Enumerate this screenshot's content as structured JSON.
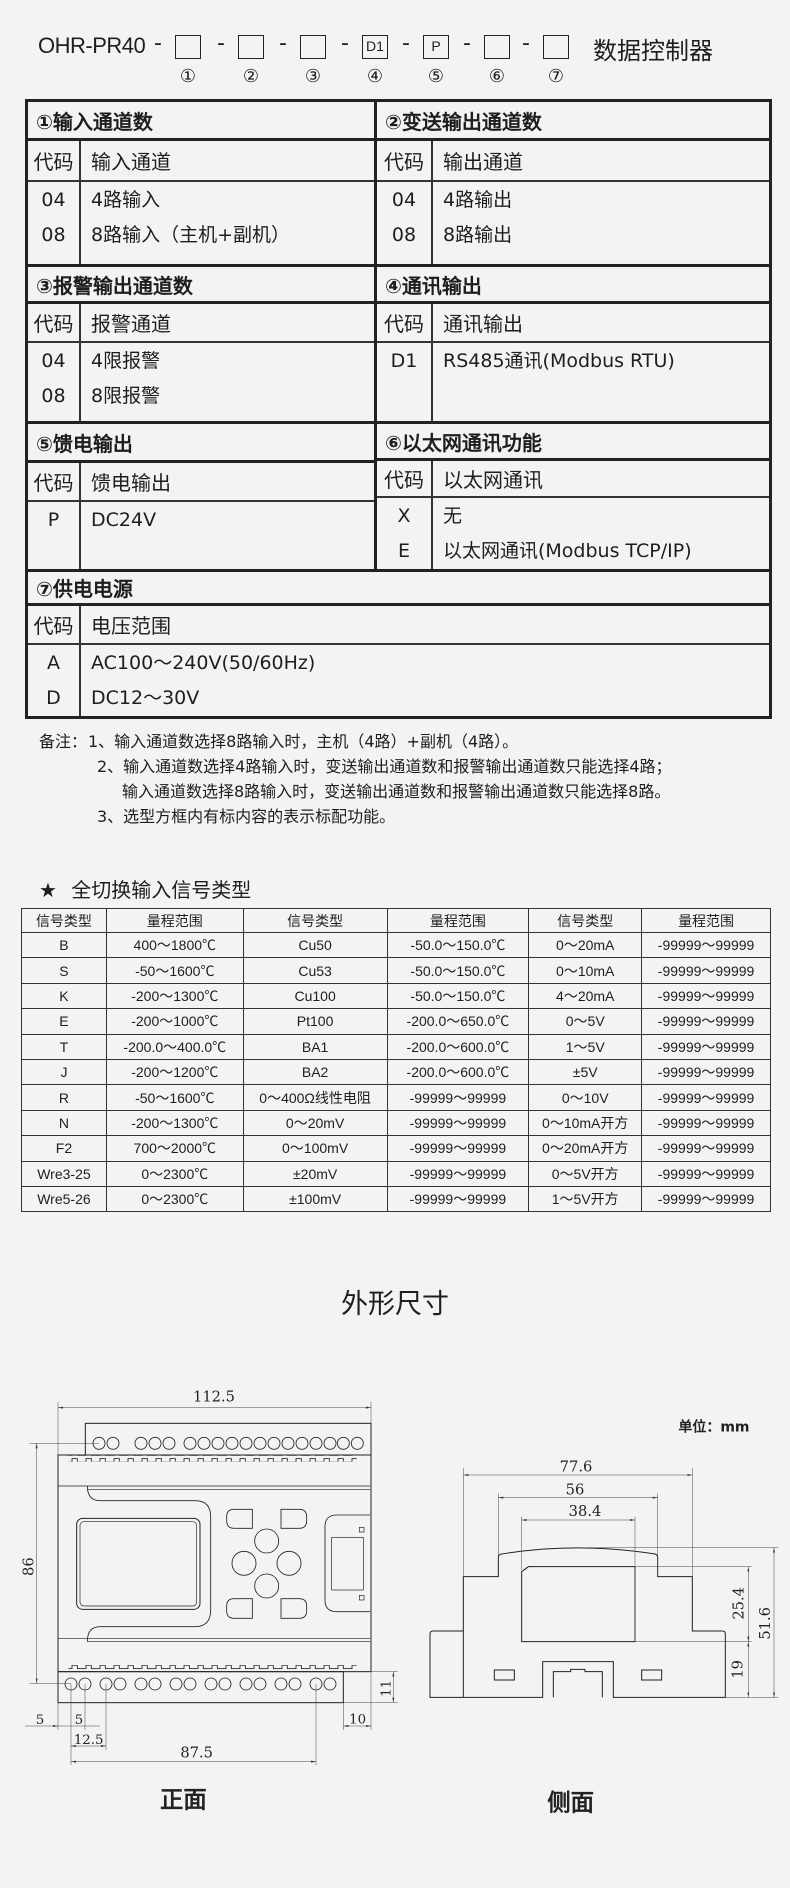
{
  "model": {
    "prefix": "OHR-PR40",
    "separator": "-",
    "boxes": [
      "",
      "",
      "",
      "D1",
      "P",
      "",
      ""
    ],
    "indices": [
      "①",
      "②",
      "③",
      "④",
      "⑤",
      "⑥",
      "⑦"
    ],
    "suffix": "数据控制器"
  },
  "sections": [
    {
      "title": "①输入通道数",
      "code_header": "代码",
      "name_header": "输入通道",
      "rows": [
        {
          "code": "04",
          "desc": "4路输入"
        },
        {
          "code": "08",
          "desc": "8路输入（主机+副机）"
        }
      ]
    },
    {
      "title": "②变送输出通道数",
      "code_header": "代码",
      "name_header": "输出通道",
      "rows": [
        {
          "code": "04",
          "desc": "4路输出"
        },
        {
          "code": "08",
          "desc": "8路输出"
        }
      ]
    },
    {
      "title": "③报警输出通道数",
      "code_header": "代码",
      "name_header": "报警通道",
      "rows": [
        {
          "code": "04",
          "desc": "4限报警"
        },
        {
          "code": "08",
          "desc": "8限报警"
        }
      ]
    },
    {
      "title": "④通讯输出",
      "code_header": "代码",
      "name_header": "通讯输出",
      "rows": [
        {
          "code": "D1",
          "desc": "RS485通讯(Modbus RTU)"
        }
      ]
    },
    {
      "title": "⑤馈电输出",
      "code_header": "代码",
      "name_header": "馈电输出",
      "rows": [
        {
          "code": "P",
          "desc": "DC24V"
        }
      ]
    },
    {
      "title": "⑥以太网通讯功能",
      "code_header": "代码",
      "name_header": "以太网通讯",
      "rows": [
        {
          "code": "X",
          "desc": "无"
        },
        {
          "code": "E",
          "desc": "以太网通讯(Modbus TCP/IP)"
        }
      ]
    },
    {
      "title": "⑦供电电源",
      "code_header": "代码",
      "name_header": "电压范围",
      "rows": [
        {
          "code": "A",
          "desc": "AC100～240V(50/60Hz)"
        },
        {
          "code": "D",
          "desc": "DC12～30V"
        }
      ]
    }
  ],
  "notes": {
    "label": "备注：",
    "lines": [
      "1、输入通道数选择8路输入时，主机（4路）+副机（4路）。",
      "2、输入通道数选择4路输入时，变送输出通道数和报警输出通道数只能选择4路；",
      "输入通道数选择8路输入时，变送输出通道数和报警输出通道数只能选择8路。",
      "3、选型方框内有标内容的表示标配功能。"
    ]
  },
  "signal_table": {
    "star": "★",
    "title": "全切换输入信号类型",
    "headers": [
      "信号类型",
      "量程范围",
      "信号类型",
      "量程范围",
      "信号类型",
      "量程范围"
    ],
    "rows": [
      [
        "B",
        "400～1800℃",
        "Cu50",
        "-50.0～150.0℃",
        "0～20mA",
        "-99999～99999"
      ],
      [
        "S",
        "-50～1600℃",
        "Cu53",
        "-50.0～150.0℃",
        "0～10mA",
        "-99999～99999"
      ],
      [
        "K",
        "-200～1300℃",
        "Cu100",
        "-50.0～150.0℃",
        "4～20mA",
        "-99999～99999"
      ],
      [
        "E",
        "-200～1000℃",
        "Pt100",
        "-200.0～650.0℃",
        "0～5V",
        "-99999～99999"
      ],
      [
        "T",
        "-200.0～400.0℃",
        "BA1",
        "-200.0～600.0℃",
        "1～5V",
        "-99999～99999"
      ],
      [
        "J",
        "-200～1200℃",
        "BA2",
        "-200.0～600.0℃",
        "±5V",
        "-99999～99999"
      ],
      [
        "R",
        "-50～1600℃",
        "0～400Ω线性电阻",
        "-99999～99999",
        "0～10V",
        "-99999～99999"
      ],
      [
        "N",
        "-200～1300℃",
        "0～20mV",
        "-99999～99999",
        "0～10mA开方",
        "-99999～99999"
      ],
      [
        "F2",
        "700～2000℃",
        "0～100mV",
        "-99999～99999",
        "0～20mA开方",
        "-99999～99999"
      ],
      [
        "Wre3-25",
        "0～2300℃",
        "±20mV",
        "-99999～99999",
        "0～5V开方",
        "-99999～99999"
      ],
      [
        "Wre5-26",
        "0～2300℃",
        "±100mV",
        "-99999～99999",
        "1～5V开方",
        "-99999～99999"
      ]
    ]
  },
  "dimensions": {
    "title": "外形尺寸",
    "unit": "单位：mm",
    "front": {
      "label": "正面",
      "width": "112.5",
      "height": "86",
      "terminal_height": "11",
      "right_offset": "10",
      "left_offset": "5",
      "pitch": "5",
      "pitch2": "12.5",
      "span": "87.5"
    },
    "side": {
      "label": "侧面",
      "width": "77.6",
      "mid_width": "56",
      "inner_width": "38.4",
      "upper_height": "25.4",
      "lower_height": "19",
      "total_height": "51.6"
    }
  }
}
